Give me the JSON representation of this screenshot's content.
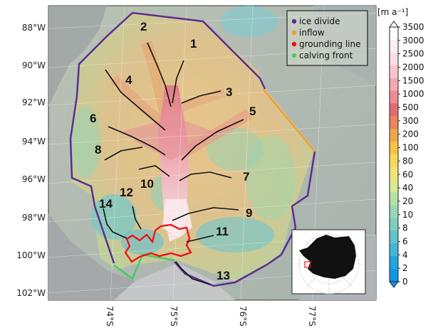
{
  "map": {
    "lat_labels": [
      "88°W",
      "90°W",
      "92°W",
      "94°W",
      "96°W",
      "98°W",
      "100°W",
      "102°W"
    ],
    "lon_labels": [
      "74°S",
      "75°S",
      "76°S",
      "77°S"
    ],
    "tributaries": [
      "1",
      "2",
      "3",
      "4",
      "5",
      "6",
      "7",
      "8",
      "9",
      "10",
      "11",
      "12",
      "13",
      "14"
    ]
  },
  "legend": {
    "items": [
      {
        "label": "ice divide",
        "color": "#5b2d90"
      },
      {
        "label": "inflow",
        "color": "#f0a030"
      },
      {
        "label": "grounding line",
        "color": "#ee1111"
      },
      {
        "label": "calving front",
        "color": "#44cc66"
      }
    ]
  },
  "colorbar": {
    "unit": "[m a⁻¹]",
    "ticks": [
      "3500",
      "3000",
      "2500",
      "2000",
      "1500",
      "1000",
      "500",
      "300",
      "200",
      "100",
      "80",
      "60",
      "40",
      "20",
      "10",
      "8",
      "6",
      "4",
      "2",
      "0"
    ],
    "colors": [
      "#ffffff",
      "#fdeef0",
      "#fbdde2",
      "#f7c6cc",
      "#f2aab2",
      "#ec8c96",
      "#e06c74",
      "#e8845c",
      "#f0a64c",
      "#f5c445",
      "#f6d85c",
      "#f0e27a",
      "#d9ea8f",
      "#b3e2a4",
      "#97d8b4",
      "#7fcfc0",
      "#62c4cc",
      "#43b6d6",
      "#22a4df",
      "#0f97e5"
    ]
  }
}
